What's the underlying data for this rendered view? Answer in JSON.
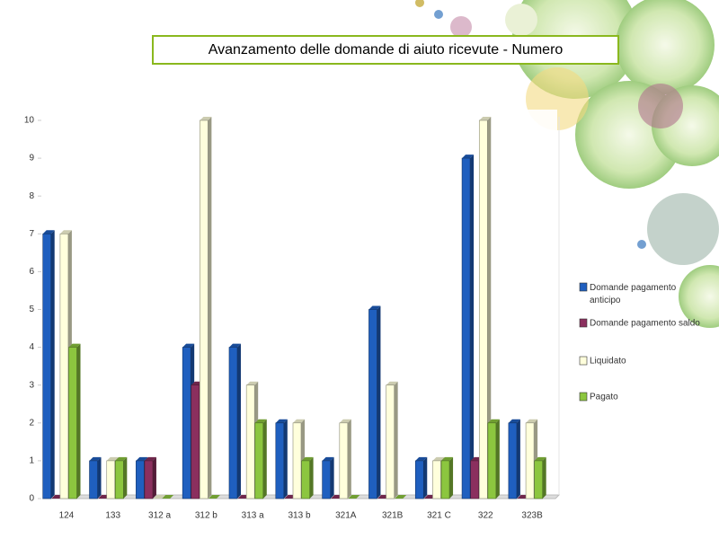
{
  "chart_data": {
    "type": "bar",
    "title": "Avanzamento delle domande di aiuto ricevute - Numero",
    "categories": [
      "124",
      "133",
      "312 a",
      "312 b",
      "313 a",
      "313 b",
      "321A",
      "321B",
      "321 C",
      "322",
      "323B"
    ],
    "series": [
      {
        "name": "Domande pagamento anticipo",
        "color": "#1f5fbf",
        "values": [
          7,
          1,
          1,
          4,
          4,
          2,
          1,
          5,
          1,
          9,
          2
        ]
      },
      {
        "name": "Domande pagamento saldo",
        "color": "#8b2f5e",
        "values": [
          0,
          0,
          1,
          3,
          0,
          0,
          0,
          0,
          0,
          1,
          0
        ]
      },
      {
        "name": "Liquidato",
        "color": "#ffffdc",
        "values": [
          7,
          1,
          0,
          10,
          3,
          2,
          2,
          3,
          1,
          10,
          2
        ]
      },
      {
        "name": "Pagato",
        "color": "#8cc63f",
        "values": [
          4,
          1,
          0,
          0,
          2,
          1,
          0,
          0,
          1,
          2,
          1
        ]
      }
    ],
    "ylim": [
      0,
      10
    ],
    "yticks": [
      0,
      1,
      2,
      3,
      4,
      5,
      6,
      7,
      8,
      9,
      10
    ],
    "legend": "right"
  }
}
